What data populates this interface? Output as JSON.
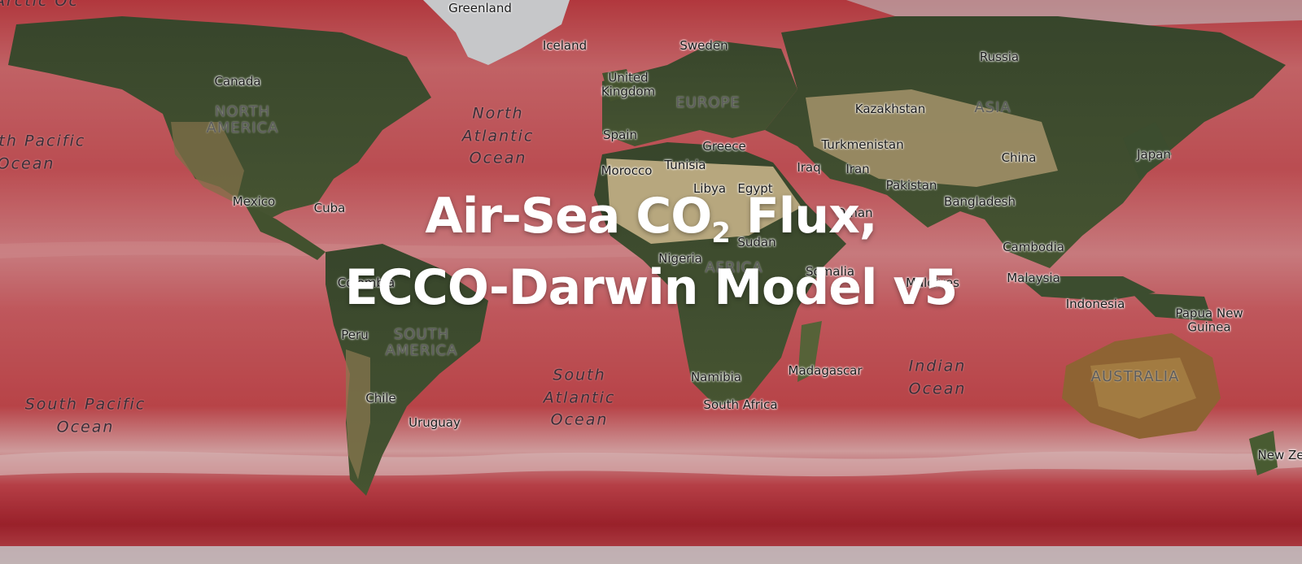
{
  "title": {
    "line_a": "Air-Sea CO",
    "subscript": "2",
    "line_b": " Flux, ECCO-Darwin Model v5"
  },
  "colors": {
    "ocean": "#c94b4f",
    "ocean_light": "#e49a9a",
    "ocean_dark": "#a8232c",
    "land_forest": "#3d4f2d",
    "land_desert": "#c7b483",
    "ice": "#e3e3e6",
    "title": "#ffffff"
  },
  "labels": {
    "oceans": {
      "arctic": "Arctic Oc",
      "north_pacific": "North Pacific Ocean",
      "north_atlantic": "North Atlantic Ocean",
      "south_pacific": "South Pacific Ocean",
      "south_atlantic": "South Atlantic Ocean",
      "indian": "Indian Ocean"
    },
    "regions": {
      "north_america": "NORTH AMERICA",
      "south_america": "SOUTH AMERICA",
      "europe": "EUROPE",
      "asia": "ASIA",
      "africa": "AFRICA",
      "australia": "AUSTRALIA"
    },
    "places": {
      "greenland": "Greenland",
      "iceland": "Iceland",
      "sweden": "Sweden",
      "russia": "Russia",
      "canada": "Canada",
      "united_kingdom": "United Kingdom",
      "kazakhstan": "Kazakhstan",
      "spain": "Spain",
      "greece": "Greece",
      "turkmenistan": "Turkmenistan",
      "china": "China",
      "japan": "Japan",
      "morocco": "Morocco",
      "tunisia": "Tunisia",
      "libya": "Libya",
      "egypt": "Egypt",
      "iraq": "Iraq",
      "iran": "Iran",
      "pakistan": "Pakistan",
      "mexico": "Mexico",
      "cuba": "Cuba",
      "bangladesh": "Bangladesh",
      "oman": "Oman",
      "sudan": "Sudan",
      "cambodia": "Cambodia",
      "nigeria": "Nigeria",
      "somalia": "Somalia",
      "maldives": "Maldives",
      "colombia": "Colombia",
      "malaysia": "Malaysia",
      "indonesia": "Indonesia",
      "papua_new_guinea": "Papua New Guinea",
      "peru": "Peru",
      "madagascar": "Madagascar",
      "namibia": "Namibia",
      "chile": "Chile",
      "south_africa": "South Africa",
      "uruguay": "Uruguay",
      "new_zealand": "New Ze"
    }
  }
}
